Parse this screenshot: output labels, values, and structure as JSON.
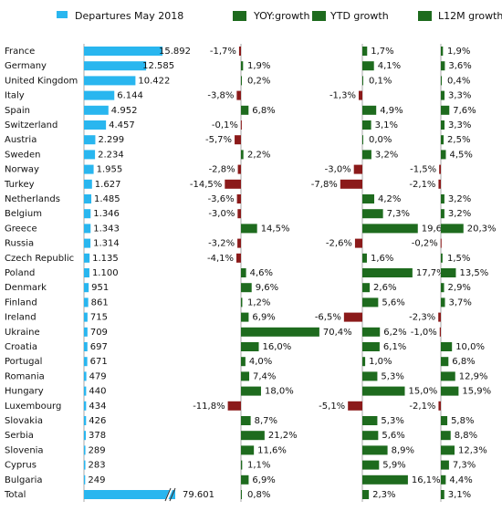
{
  "chart_data": {
    "type": "bar",
    "categories": [
      "France",
      "Germany",
      "United Kingdom",
      "Italy",
      "Spain",
      "Switzerland",
      "Austria",
      "Sweden",
      "Norway",
      "Turkey",
      "Netherlands",
      "Belgium",
      "Greece",
      "Russia",
      "Czech Republic",
      "Poland",
      "Denmark",
      "Finland",
      "Ireland",
      "Ukraine",
      "Croatia",
      "Portugal",
      "Romania",
      "Hungary",
      "Luxembourg",
      "Slovakia",
      "Serbia",
      "Slovenia",
      "Cyprus",
      "Bulgaria",
      "Total"
    ],
    "negative_color": "#8b1a1a",
    "series": [
      {
        "name": "Departures May 2018",
        "color": "#29b6ef",
        "values": [
          15892,
          12585,
          10422,
          6144,
          4952,
          4457,
          2299,
          2234,
          1955,
          1627,
          1485,
          1346,
          1343,
          1314,
          1135,
          1100,
          951,
          861,
          715,
          709,
          697,
          671,
          479,
          440,
          434,
          426,
          378,
          289,
          283,
          249,
          79601
        ],
        "value_labels": [
          "15.892",
          "12.585",
          "10.422",
          "6.144",
          "4.952",
          "4.457",
          "2.299",
          "2.234",
          "1.955",
          "1.627",
          "1.485",
          "1.346",
          "1.343",
          "1.314",
          "1.135",
          "1.100",
          "951",
          "861",
          "715",
          "709",
          "697",
          "671",
          "479",
          "440",
          "434",
          "426",
          "378",
          "289",
          "283",
          "249",
          "79.601"
        ]
      },
      {
        "name": "YOY:growth",
        "color": "#1e6b1e",
        "values": [
          -1.7,
          1.9,
          0.2,
          -3.8,
          6.8,
          -0.1,
          -5.7,
          2.2,
          -2.8,
          -14.5,
          -3.6,
          -3.0,
          14.5,
          -3.2,
          -4.1,
          4.6,
          9.6,
          1.2,
          6.9,
          70.4,
          16.0,
          4.0,
          7.4,
          18.0,
          -11.8,
          8.7,
          21.2,
          11.6,
          1.1,
          6.9,
          0.8
        ],
        "value_labels": [
          "-1,7%",
          "1,9%",
          "0,2%",
          "-3,8%",
          "6,8%",
          "-0,1%",
          "-5,7%",
          "2,2%",
          "-2,8%",
          "-14,5%",
          "-3,6%",
          "-3,0%",
          "14,5%",
          "-3,2%",
          "-4,1%",
          "4,6%",
          "9,6%",
          "1,2%",
          "6,9%",
          "70,4%",
          "16,0%",
          "4,0%",
          "7,4%",
          "18,0%",
          "-11,8%",
          "8,7%",
          "21,2%",
          "11,6%",
          "1,1%",
          "6,9%",
          "0,8%"
        ]
      },
      {
        "name": "YTD growth",
        "color": "#1e6b1e",
        "values": [
          1.7,
          4.1,
          0.1,
          -1.3,
          4.9,
          3.1,
          0.0,
          3.2,
          -3.0,
          -7.8,
          4.2,
          7.3,
          19.6,
          -2.6,
          1.6,
          17.7,
          2.6,
          5.6,
          -6.5,
          6.2,
          6.1,
          1.0,
          5.3,
          15.0,
          -5.1,
          5.3,
          5.6,
          8.9,
          5.9,
          16.1,
          2.3
        ],
        "value_labels": [
          "1,7%",
          "4,1%",
          "0,1%",
          "-1,3%",
          "4,9%",
          "3,1%",
          "0,0%",
          "3,2%",
          "-3,0%",
          "-7,8%",
          "4,2%",
          "7,3%",
          "19,6%",
          "-2,6%",
          "1,6%",
          "17,7%",
          "2,6%",
          "5,6%",
          "-6,5%",
          "6,2%",
          "6,1%",
          "1,0%",
          "5,3%",
          "15,0%",
          "-5,1%",
          "5,3%",
          "5,6%",
          "8,9%",
          "5,9%",
          "16,1%",
          "2,3%"
        ]
      },
      {
        "name": "L12M growth",
        "color": "#1e6b1e",
        "values": [
          1.9,
          3.6,
          0.4,
          3.3,
          7.6,
          3.3,
          2.5,
          4.5,
          -1.5,
          -2.1,
          3.2,
          3.2,
          20.3,
          -0.2,
          1.5,
          13.5,
          2.9,
          3.7,
          -2.3,
          -1.0,
          10.0,
          6.8,
          12.9,
          15.9,
          -2.1,
          5.8,
          8.8,
          12.3,
          7.3,
          4.4,
          3.1
        ],
        "value_labels": [
          "1,9%",
          "3,6%",
          "0,4%",
          "3,3%",
          "7,6%",
          "3,3%",
          "2,5%",
          "4,5%",
          "-1,5%",
          "-2,1%",
          "3,2%",
          "3,2%",
          "20,3%",
          "-0,2%",
          "1,5%",
          "13,5%",
          "2,9%",
          "3,7%",
          "-2,3%",
          "-1,0%",
          "10,0%",
          "6,8%",
          "12,9%",
          "15,9%",
          "-2,1%",
          "5,8%",
          "8,8%",
          "12,3%",
          "7,3%",
          "4,4%",
          "3,1%"
        ]
      }
    ]
  }
}
